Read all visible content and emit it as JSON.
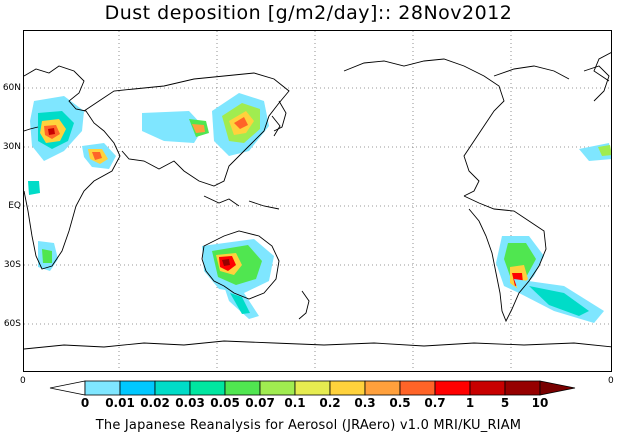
{
  "title": "Dust deposition [g/m2/day]:: 28Nov2012",
  "map": {
    "latitude_labels": [
      "60N",
      "30N",
      "EQ",
      "30S",
      "60S"
    ],
    "frame_corner_labels": [
      "0",
      "0"
    ],
    "land_color": "#ffffff",
    "coastline_color": "#000000",
    "gridline_style": "dotted"
  },
  "colorbar": {
    "unit": "g/m2/day",
    "levels": [
      "0",
      "0.01",
      "0.02",
      "0.03",
      "0.05",
      "0.07",
      "0.1",
      "0.2",
      "0.3",
      "0.5",
      "0.7",
      "1",
      "5",
      "10"
    ],
    "colors": [
      "#ffffff",
      "#7fe6ff",
      "#00c8ff",
      "#00dcc8",
      "#00e6a0",
      "#50e650",
      "#a0ec50",
      "#e6ec50",
      "#ffd23c",
      "#ffa03c",
      "#ff6428",
      "#ff0000",
      "#c80000",
      "#960000",
      "#780000"
    ]
  },
  "footer": "The Japanese Reanalysis for Aerosol (JRAero) v1.0 MRI/KU_RIAM"
}
